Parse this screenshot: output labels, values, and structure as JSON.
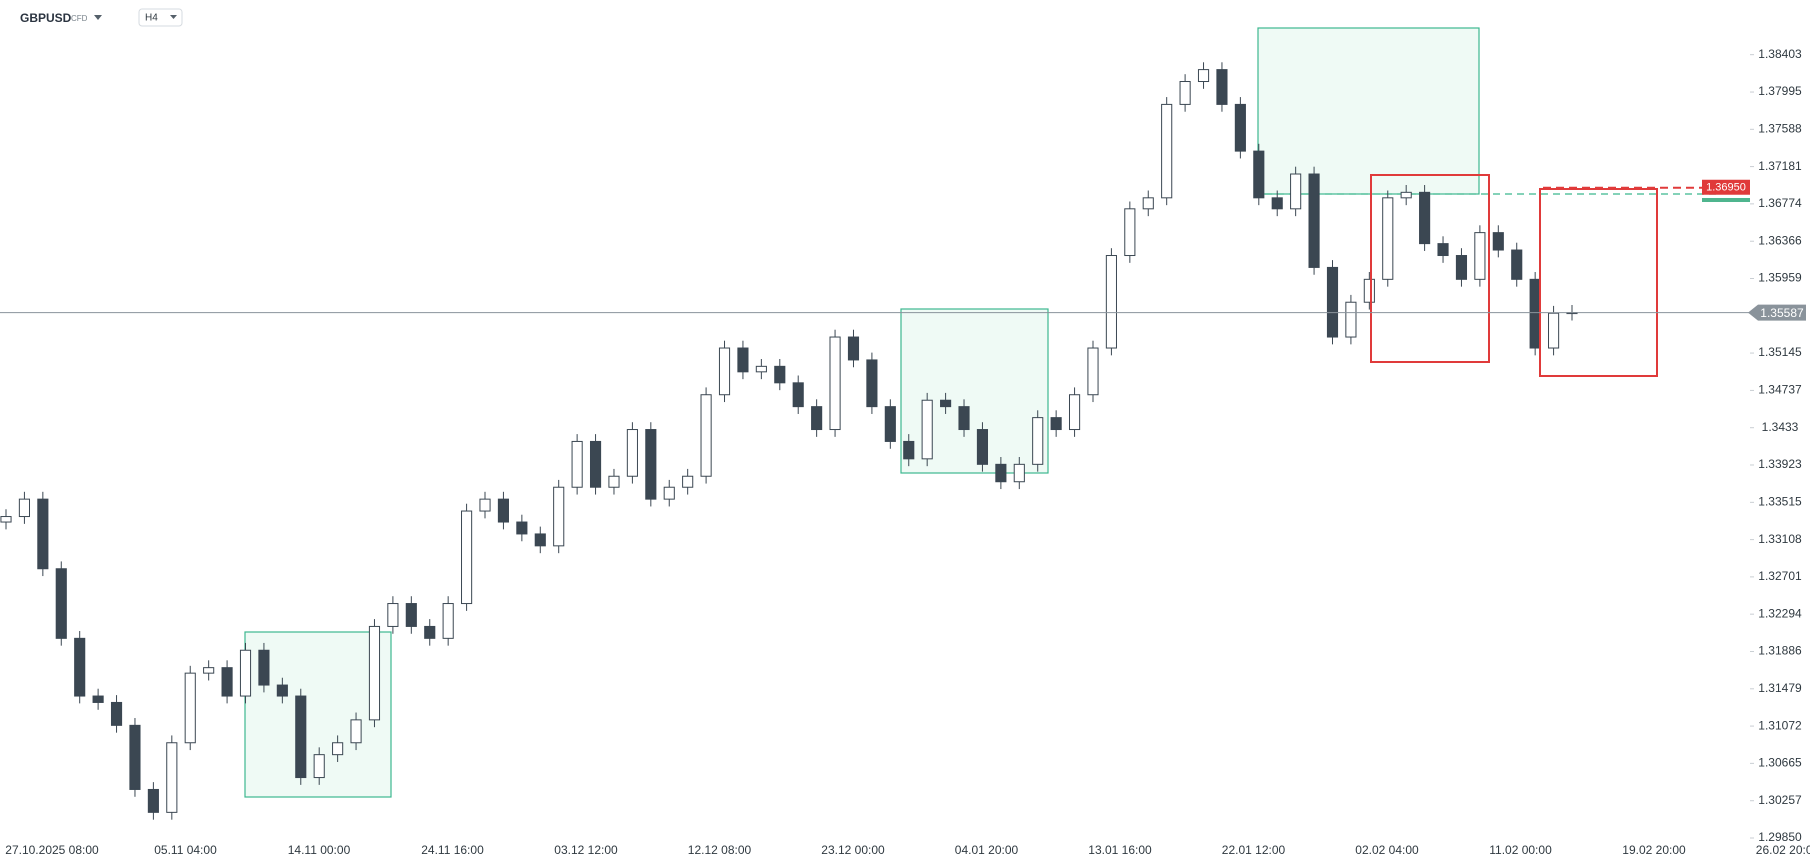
{
  "chart_data": {
    "type": "candlestick",
    "symbol": "GBPUSD",
    "instrument_type": "CFD",
    "timeframe": "H4",
    "x_labels": [
      "27.10.2025  08:00",
      "05.11  04:00",
      "14.11  00:00",
      "24.11  16:00",
      "03.12  12:00",
      "12.12  08:00",
      "23.12  00:00",
      "04.01  20:00",
      "13.01  16:00",
      "22.01  12:00",
      "02.02  04:00",
      "11.02  00:00",
      "19.02  20:00",
      "26.02  20:00"
    ],
    "open": [
      1.333,
      1.3336,
      1.3355,
      1.3279,
      1.3203,
      1.314,
      1.3133,
      1.3108,
      1.3038,
      1.3013,
      1.3089,
      1.3165,
      1.3171,
      1.314,
      1.319,
      1.3152,
      1.314,
      1.3051,
      1.3076,
      1.3089,
      1.3114,
      1.3216,
      1.3241,
      1.3216,
      1.3203,
      1.3241,
      1.3342,
      1.3355,
      1.333,
      1.3317,
      1.3304,
      1.3368,
      1.3418,
      1.3368,
      1.338,
      1.3431,
      1.3355,
      1.3368,
      1.338,
      1.3469,
      1.352,
      1.3494,
      1.35,
      1.3482,
      1.3456,
      1.3431,
      1.3532,
      1.3507,
      1.3456,
      1.3418,
      1.3399,
      1.3463,
      1.3456,
      1.3431,
      1.3393,
      1.3374,
      1.3393,
      1.3444,
      1.3431,
      1.3469,
      1.352,
      1.3621,
      1.3672,
      1.3684,
      1.3786,
      1.3811,
      1.3824,
      1.3786,
      1.3735,
      1.3684,
      1.3672,
      1.371,
      1.3608,
      1.3532,
      1.357,
      1.3595,
      1.3684,
      1.369,
      1.3634,
      1.3621,
      1.3595,
      1.3646,
      1.3627,
      1.3595,
      1.352,
      1.3558
    ],
    "high": [
      1.3344,
      1.3363,
      1.3363,
      1.3287,
      1.3211,
      1.3148,
      1.3141,
      1.3116,
      1.3046,
      1.3097,
      1.3173,
      1.3179,
      1.3179,
      1.3198,
      1.3198,
      1.316,
      1.3148,
      1.3084,
      1.3097,
      1.3122,
      1.3224,
      1.3249,
      1.3249,
      1.3224,
      1.3249,
      1.335,
      1.3363,
      1.3363,
      1.3338,
      1.3325,
      1.3376,
      1.3426,
      1.3426,
      1.3388,
      1.3439,
      1.3439,
      1.3376,
      1.3388,
      1.3477,
      1.3528,
      1.3528,
      1.3508,
      1.3508,
      1.349,
      1.3464,
      1.354,
      1.354,
      1.3515,
      1.3464,
      1.3426,
      1.3471,
      1.3471,
      1.3464,
      1.3439,
      1.3401,
      1.3401,
      1.3452,
      1.3452,
      1.3477,
      1.3528,
      1.3629,
      1.368,
      1.3692,
      1.3794,
      1.3819,
      1.3832,
      1.3832,
      1.3794,
      1.3743,
      1.3692,
      1.3718,
      1.3718,
      1.3616,
      1.3578,
      1.3603,
      1.3692,
      1.3698,
      1.3698,
      1.3642,
      1.3629,
      1.3654,
      1.3654,
      1.3635,
      1.3603,
      1.3566,
      1.3567
    ],
    "low": [
      1.3322,
      1.3328,
      1.3271,
      1.3195,
      1.3132,
      1.3125,
      1.31,
      1.303,
      1.3005,
      1.3005,
      1.3081,
      1.3157,
      1.3132,
      1.3132,
      1.3144,
      1.3132,
      1.3043,
      1.3043,
      1.3068,
      1.3081,
      1.3106,
      1.3208,
      1.3208,
      1.3195,
      1.3195,
      1.3233,
      1.3334,
      1.3322,
      1.3309,
      1.3296,
      1.3296,
      1.336,
      1.336,
      1.336,
      1.3372,
      1.3347,
      1.3347,
      1.336,
      1.3372,
      1.3461,
      1.3486,
      1.3486,
      1.3474,
      1.3448,
      1.3423,
      1.3423,
      1.3499,
      1.3448,
      1.341,
      1.3391,
      1.3391,
      1.3448,
      1.3423,
      1.3385,
      1.3366,
      1.3366,
      1.3385,
      1.3423,
      1.3423,
      1.3461,
      1.3512,
      1.3613,
      1.3664,
      1.3676,
      1.3778,
      1.3803,
      1.3778,
      1.3727,
      1.3676,
      1.3664,
      1.3664,
      1.36,
      1.3524,
      1.3524,
      1.3562,
      1.3587,
      1.3676,
      1.3626,
      1.3613,
      1.3587,
      1.3587,
      1.3619,
      1.3587,
      1.3512,
      1.3512,
      1.355
    ],
    "close": [
      1.3336,
      1.3355,
      1.3279,
      1.3203,
      1.314,
      1.3133,
      1.3108,
      1.3038,
      1.3013,
      1.3089,
      1.3165,
      1.3171,
      1.314,
      1.319,
      1.3152,
      1.314,
      1.3051,
      1.3076,
      1.3089,
      1.3114,
      1.3216,
      1.3241,
      1.3216,
      1.3203,
      1.3241,
      1.3342,
      1.3355,
      1.333,
      1.3317,
      1.3304,
      1.3368,
      1.3418,
      1.3368,
      1.338,
      1.3431,
      1.3355,
      1.3368,
      1.338,
      1.3469,
      1.352,
      1.3494,
      1.35,
      1.3482,
      1.3456,
      1.3431,
      1.3532,
      1.3507,
      1.3456,
      1.3418,
      1.3399,
      1.3463,
      1.3456,
      1.3431,
      1.3393,
      1.3374,
      1.3393,
      1.3444,
      1.3431,
      1.3469,
      1.352,
      1.3621,
      1.3672,
      1.3684,
      1.3786,
      1.3811,
      1.3824,
      1.3786,
      1.3735,
      1.3684,
      1.3672,
      1.371,
      1.3608,
      1.3532,
      1.357,
      1.3595,
      1.3684,
      1.369,
      1.3634,
      1.3621,
      1.3595,
      1.3646,
      1.3627,
      1.3595,
      1.352,
      1.3558,
      1.35587
    ],
    "current_price": 1.35587,
    "alert_line": {
      "value": 1.3695,
      "label": "1.36950"
    },
    "ylim": [
      1.2985,
      1.39
    ],
    "yticks": [
      1.38403,
      1.37995,
      1.37588,
      1.37181,
      1.36774,
      1.36366,
      1.35959,
      1.35145,
      1.34737,
      1.3433,
      1.33923,
      1.33515,
      1.33108,
      1.32701,
      1.32294,
      1.31886,
      1.31479,
      1.31072,
      1.30665,
      1.30257,
      {
        "value": 1.2985,
        "label": "1.29850"
      }
    ],
    "up_color": "#ffffff",
    "down_color": "#3b4752",
    "wick_color": "#3b4752"
  }
}
